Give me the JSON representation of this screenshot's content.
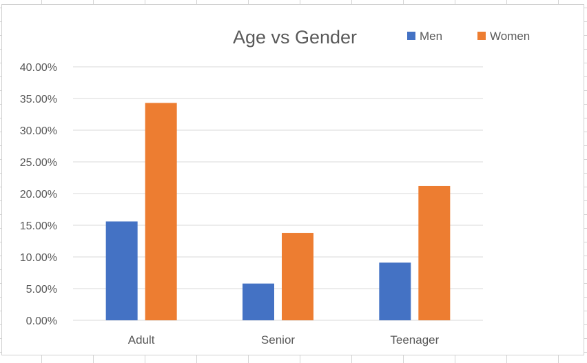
{
  "chart_data": {
    "type": "bar",
    "title": "Age vs Gender",
    "categories": [
      "Adult",
      "Senior",
      "Teenager"
    ],
    "series": [
      {
        "name": "Men",
        "values": [
          0.156,
          0.058,
          0.091
        ],
        "color": "#4472C4"
      },
      {
        "name": "Women",
        "values": [
          0.343,
          0.138,
          0.212
        ],
        "color": "#ED7D31"
      }
    ],
    "ylim": [
      0,
      0.4
    ],
    "yticks": [
      0,
      0.05,
      0.1,
      0.15,
      0.2,
      0.25,
      0.3,
      0.35,
      0.4
    ],
    "ytick_labels": [
      "0.00%",
      "5.00%",
      "10.00%",
      "15.00%",
      "20.00%",
      "25.00%",
      "30.00%",
      "35.00%",
      "40.00%"
    ],
    "xlabel": "",
    "ylabel": "",
    "grid": true,
    "legend_position": "top-right",
    "gridline_color": "#D9D9D9",
    "text_color": "#595959"
  }
}
